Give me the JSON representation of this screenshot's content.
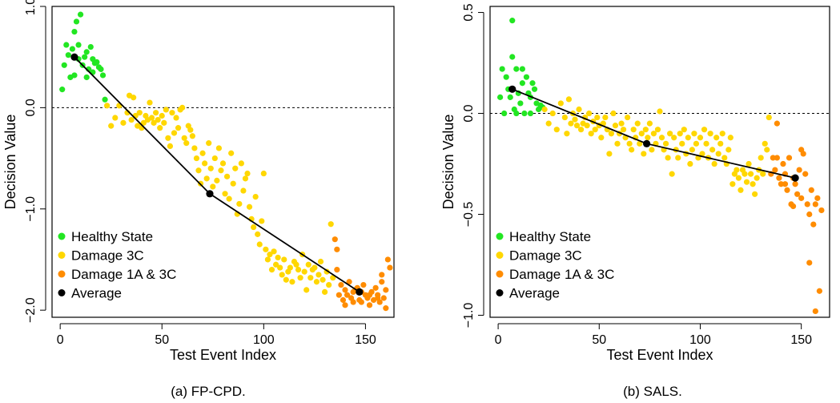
{
  "chart_data": [
    {
      "type": "scatter",
      "caption": "(a) FP-CPD.",
      "xlabel": "Test Event Index",
      "ylabel": "Decision Value",
      "xlim": [
        -4,
        164
      ],
      "ylim": [
        -2.07,
        1.0
      ],
      "xticks": [
        0,
        50,
        100,
        150
      ],
      "xtick_labels": [
        "0",
        "50",
        "100",
        "150"
      ],
      "yticks": [
        1.0,
        0.0,
        -1.0,
        -2.0
      ],
      "ytick_labels": [
        "1.0",
        "0.0",
        "−1.0",
        "−2.0"
      ],
      "reference_line": 0,
      "legend": {
        "position": "bottom-left",
        "entries": [
          {
            "label": "Healthy State",
            "color": "#22e622"
          },
          {
            "label": "Damage 3C",
            "color": "#ffd700"
          },
          {
            "label": "Damage 1A & 3C",
            "color": "#ff8c00"
          },
          {
            "label": "Average",
            "color": "#000000"
          }
        ]
      },
      "series": [
        {
          "name": "Healthy State",
          "color": "#22e622",
          "x": [
            1,
            2,
            3,
            4,
            5,
            6,
            7,
            8,
            9,
            10,
            11,
            12,
            13,
            14,
            15,
            16,
            17,
            18,
            19,
            20,
            21,
            22,
            7,
            9,
            13,
            16
          ],
          "y": [
            0.18,
            0.42,
            0.62,
            0.52,
            0.3,
            0.58,
            0.32,
            0.85,
            0.48,
            0.92,
            0.42,
            0.5,
            0.55,
            0.38,
            0.6,
            0.35,
            0.44,
            0.45,
            0.4,
            0.38,
            0.32,
            0.08,
            0.75,
            0.62,
            0.3,
            0.48
          ]
        },
        {
          "name": "Damage 3C",
          "color": "#ffd700",
          "x": [
            23,
            25,
            27,
            29,
            31,
            33,
            34,
            35,
            36,
            37,
            38,
            39,
            40,
            41,
            42,
            43,
            44,
            45,
            46,
            47,
            48,
            49,
            50,
            51,
            52,
            53,
            54,
            55,
            56,
            57,
            58,
            59,
            60,
            61,
            62,
            63,
            64,
            65,
            66,
            67,
            68,
            69,
            70,
            71,
            72,
            73,
            74,
            75,
            76,
            77,
            78,
            79,
            80,
            81,
            82,
            83,
            84,
            85,
            86,
            87,
            88,
            89,
            90,
            91,
            92,
            93,
            94,
            95,
            96,
            97,
            98,
            99,
            100,
            101,
            102,
            103,
            104,
            105,
            106,
            107,
            108,
            109,
            110,
            111,
            112,
            113,
            114,
            115,
            116,
            117,
            118,
            119,
            120,
            121,
            122,
            123,
            124,
            125,
            126,
            127,
            128,
            129,
            130,
            131,
            132,
            133,
            134
          ],
          "y": [
            0.02,
            -0.18,
            -0.1,
            0.02,
            -0.15,
            -0.05,
            0.12,
            -0.12,
            0.1,
            -0.08,
            -0.18,
            -0.05,
            -0.2,
            -0.15,
            -0.08,
            -0.12,
            0.05,
            -0.1,
            -0.15,
            -0.05,
            -0.12,
            -0.2,
            -0.08,
            -0.15,
            -0.02,
            -0.3,
            -0.38,
            -0.05,
            -0.25,
            -0.1,
            -0.2,
            -0.02,
            0.0,
            -0.3,
            -0.35,
            -0.18,
            -0.22,
            -0.28,
            -0.4,
            -0.5,
            -0.62,
            -0.75,
            -0.45,
            -0.55,
            -0.7,
            -0.35,
            -0.6,
            -0.78,
            -0.5,
            -0.72,
            -0.4,
            -0.62,
            -0.55,
            -0.85,
            -0.68,
            -0.9,
            -0.45,
            -0.75,
            -0.6,
            -1.05,
            -0.95,
            -0.55,
            -0.82,
            -0.7,
            -0.65,
            -0.98,
            -1.1,
            -1.18,
            -0.88,
            -1.25,
            -1.35,
            -1.12,
            -0.65,
            -1.4,
            -1.5,
            -1.45,
            -1.6,
            -1.42,
            -1.55,
            -1.48,
            -1.58,
            -1.65,
            -1.5,
            -1.7,
            -1.62,
            -1.58,
            -1.72,
            -1.52,
            -1.55,
            -1.6,
            -1.68,
            -1.45,
            -1.62,
            -1.8,
            -1.55,
            -1.68,
            -1.6,
            -1.58,
            -1.72,
            -1.65,
            -1.52,
            -1.7,
            -1.82,
            -1.62,
            -1.75,
            -1.15,
            -1.68
          ]
        },
        {
          "name": "Damage 1A & 3C",
          "color": "#ff8c00",
          "x": [
            135,
            136,
            137,
            138,
            139,
            140,
            141,
            142,
            143,
            144,
            145,
            146,
            147,
            148,
            149,
            150,
            151,
            152,
            153,
            154,
            155,
            156,
            157,
            158,
            159,
            160,
            161,
            162,
            136,
            140,
            144,
            148,
            152,
            156,
            160,
            158
          ],
          "y": [
            -1.3,
            -1.6,
            -1.85,
            -1.75,
            -1.9,
            -1.8,
            -1.85,
            -1.72,
            -1.88,
            -1.92,
            -1.8,
            -1.78,
            -1.9,
            -1.82,
            -1.75,
            -1.85,
            -1.88,
            -1.95,
            -1.82,
            -1.9,
            -1.78,
            -1.85,
            -1.92,
            -1.72,
            -1.88,
            -1.8,
            -1.5,
            -1.58,
            -1.4,
            -1.95,
            -1.82,
            -1.92,
            -1.85,
            -1.88,
            -1.98,
            -1.65
          ]
        },
        {
          "name": "Average",
          "color": "#000000",
          "x": [
            7,
            73.5,
            147
          ],
          "y": [
            0.5,
            -0.85,
            -1.82
          ]
        }
      ]
    },
    {
      "type": "scatter",
      "caption": "(b)  SALS.",
      "xlabel": "Test Event Index",
      "ylabel": "Decision Value",
      "xlim": [
        -4,
        164
      ],
      "ylim": [
        -1.01,
        0.53
      ],
      "xticks": [
        0,
        50,
        100,
        150
      ],
      "xtick_labels": [
        "0",
        "50",
        "100",
        "150"
      ],
      "yticks": [
        0.5,
        0.0,
        -0.5,
        -1.0
      ],
      "ytick_labels": [
        "0.5",
        "0.0",
        "−0.5",
        "−1.0"
      ],
      "reference_line": 0,
      "legend": {
        "position": "bottom-left",
        "entries": [
          {
            "label": "Healthy State",
            "color": "#22e622"
          },
          {
            "label": "Damage 3C",
            "color": "#ffd700"
          },
          {
            "label": "Damage 1A & 3C",
            "color": "#ff8c00"
          },
          {
            "label": "Average",
            "color": "#000000"
          }
        ]
      },
      "series": [
        {
          "name": "Healthy State",
          "color": "#22e622",
          "x": [
            1,
            2,
            3,
            4,
            5,
            6,
            7,
            8,
            9,
            10,
            11,
            12,
            13,
            14,
            15,
            16,
            17,
            18,
            19,
            20,
            21,
            22,
            7,
            9,
            12,
            16
          ],
          "y": [
            0.08,
            0.22,
            0.0,
            0.18,
            0.12,
            0.08,
            0.28,
            0.02,
            0.22,
            0.1,
            0.05,
            0.15,
            0.0,
            0.18,
            0.1,
            0.08,
            0.15,
            0.12,
            0.05,
            0.02,
            0.04,
            0.03,
            0.46,
            0.0,
            0.22,
            0.0
          ]
        },
        {
          "name": "Damage 3C",
          "color": "#ffd700",
          "x": [
            23,
            25,
            27,
            29,
            31,
            33,
            34,
            35,
            36,
            37,
            38,
            39,
            40,
            41,
            42,
            43,
            44,
            45,
            46,
            47,
            48,
            49,
            50,
            51,
            52,
            53,
            54,
            55,
            56,
            57,
            58,
            59,
            60,
            61,
            62,
            63,
            64,
            65,
            66,
            67,
            68,
            69,
            70,
            71,
            72,
            73,
            74,
            75,
            76,
            77,
            78,
            79,
            80,
            81,
            82,
            83,
            84,
            85,
            86,
            87,
            88,
            89,
            90,
            91,
            92,
            93,
            94,
            95,
            96,
            97,
            98,
            99,
            100,
            101,
            102,
            103,
            104,
            105,
            106,
            107,
            108,
            109,
            110,
            111,
            112,
            113,
            114,
            115,
            116,
            117,
            118,
            119,
            120,
            121,
            122,
            123,
            124,
            125,
            126,
            127,
            128,
            129,
            130,
            131,
            132,
            133,
            134
          ],
          "y": [
            0.02,
            -0.05,
            0.0,
            -0.08,
            0.05,
            -0.02,
            -0.1,
            0.07,
            -0.05,
            0.0,
            -0.03,
            -0.06,
            0.02,
            -0.08,
            -0.05,
            -0.02,
            -0.06,
            0.0,
            -0.1,
            -0.04,
            -0.08,
            -0.02,
            -0.06,
            -0.12,
            -0.05,
            -0.02,
            -0.08,
            -0.2,
            -0.1,
            0.0,
            -0.06,
            -0.15,
            -0.1,
            -0.05,
            -0.08,
            -0.12,
            -0.02,
            -0.15,
            -0.18,
            -0.08,
            -0.12,
            -0.05,
            -0.15,
            -0.1,
            -0.2,
            -0.08,
            -0.12,
            -0.05,
            -0.18,
            -0.1,
            -0.15,
            -0.08,
            0.01,
            -0.12,
            -0.18,
            -0.15,
            -0.22,
            -0.1,
            -0.3,
            -0.12,
            -0.18,
            -0.22,
            -0.1,
            -0.15,
            -0.08,
            -0.2,
            -0.12,
            -0.25,
            -0.18,
            -0.1,
            -0.15,
            -0.22,
            -0.12,
            -0.2,
            -0.08,
            -0.15,
            -0.22,
            -0.1,
            -0.18,
            -0.25,
            -0.12,
            -0.2,
            -0.15,
            -0.1,
            -0.22,
            -0.25,
            -0.18,
            -0.12,
            -0.35,
            -0.3,
            -0.28,
            -0.32,
            -0.38,
            -0.28,
            -0.3,
            -0.34,
            -0.25,
            -0.3,
            -0.35,
            -0.4,
            -0.32,
            -0.28,
            -0.22,
            -0.3,
            -0.15,
            -0.18,
            -0.02
          ]
        },
        {
          "name": "Damage 1A & 3C",
          "color": "#ff8c00",
          "x": [
            135,
            136,
            137,
            138,
            139,
            140,
            141,
            142,
            143,
            144,
            145,
            146,
            147,
            148,
            149,
            150,
            151,
            152,
            153,
            154,
            155,
            156,
            157,
            158,
            159,
            160,
            138,
            142,
            146,
            150,
            154,
            157
          ],
          "y": [
            -0.3,
            -0.22,
            -0.28,
            -0.05,
            -0.32,
            -0.35,
            -0.25,
            -0.3,
            -0.38,
            -0.22,
            -0.45,
            -0.32,
            -0.35,
            -0.4,
            -0.28,
            -0.42,
            -0.2,
            -0.3,
            -0.45,
            -0.5,
            -0.38,
            -0.55,
            -0.45,
            -0.42,
            -0.88,
            -0.48,
            -0.22,
            -0.35,
            -0.46,
            -0.18,
            -0.74,
            -0.98
          ]
        },
        {
          "name": "Average",
          "color": "#000000",
          "x": [
            7,
            73.5,
            147
          ],
          "y": [
            0.12,
            -0.15,
            -0.32
          ]
        }
      ]
    }
  ]
}
